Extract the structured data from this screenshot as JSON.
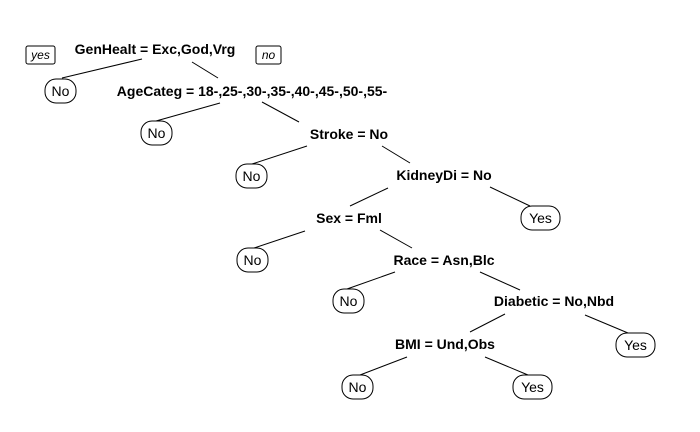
{
  "tree": {
    "branch_labels": {
      "left": "yes",
      "right": "no"
    },
    "splits": {
      "root": "GenHealt = Exc,God,Vrg",
      "age": "AgeCateg = 18-,25-,30-,35-,40-,45-,50-,55-",
      "stroke": "Stroke = No",
      "kidney": "KidneyDi = No",
      "sex": "Sex = Fml",
      "race": "Race = Asn,Blc",
      "diabetic": "Diabetic = No,Nbd",
      "bmi": "BMI = Und,Obs"
    },
    "leaves": {
      "l1": "No",
      "l2": "No",
      "l3": "No",
      "l4": "Yes",
      "l5": "No",
      "l6": "No",
      "l7": "Yes",
      "l8": "No",
      "l9": "Yes"
    }
  }
}
